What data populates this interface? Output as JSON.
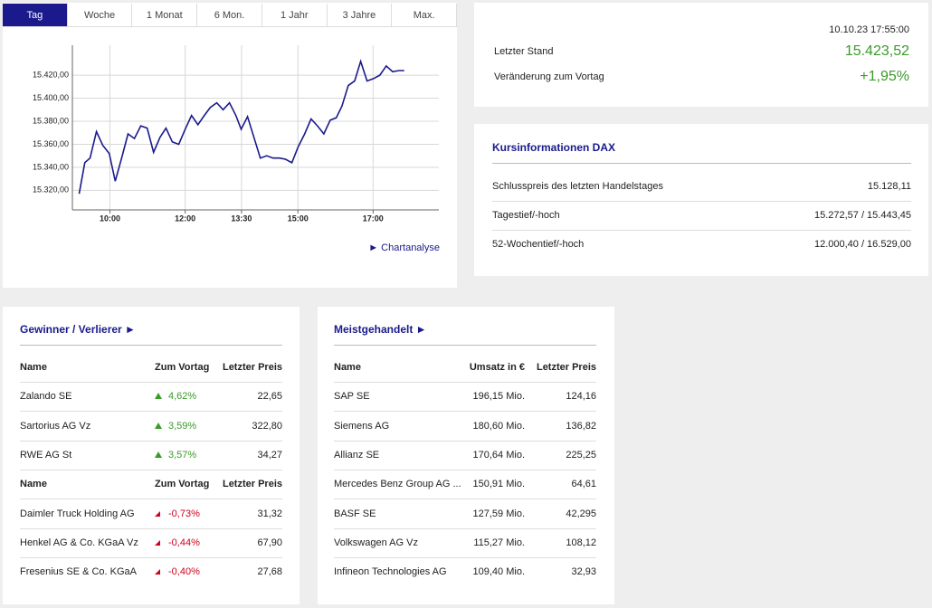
{
  "tabs": {
    "items": [
      "Tag",
      "Woche",
      "1 Monat",
      "6 Mon.",
      "1 Jahr",
      "3 Jahre",
      "Max."
    ],
    "selected": 0
  },
  "chart_data": {
    "type": "line",
    "x": [
      9.18,
      9.33,
      9.47,
      9.64,
      9.81,
      9.98,
      10.14,
      10.31,
      10.48,
      10.65,
      10.82,
      10.99,
      11.16,
      11.33,
      11.49,
      11.66,
      11.83,
      12.0,
      12.17,
      12.34,
      12.51,
      12.67,
      12.84,
      13.01,
      13.18,
      13.35,
      13.49,
      13.66,
      13.83,
      14.0,
      14.17,
      14.34,
      14.51,
      14.67,
      14.84,
      15.01,
      15.18,
      15.35,
      15.52,
      15.69,
      15.86,
      16.02,
      16.17,
      16.34,
      16.51,
      16.67,
      16.84,
      17.01,
      17.18,
      17.35,
      17.52,
      17.69,
      17.83
    ],
    "series": [
      {
        "color": "#1a1a8c",
        "values": [
          15317,
          15344,
          15348,
          15371,
          15359,
          15352,
          15328,
          15348,
          15369,
          15365,
          15376,
          15374,
          15353,
          15366,
          15374,
          15362,
          15360,
          15373,
          15385,
          15377,
          15385,
          15392,
          15396,
          15390,
          15396,
          15385,
          15373,
          15384,
          15366,
          15348,
          15350,
          15348,
          15348,
          15347,
          15344,
          15358,
          15369,
          15382,
          15376,
          15369,
          15381,
          15383,
          15393,
          15411,
          15415,
          15432,
          15415,
          15417,
          15420,
          15428,
          15423,
          15424,
          15424
        ]
      }
    ],
    "xlim": [
      9,
      18.75
    ],
    "xticks": [
      {
        "value": 10,
        "label": "10:00"
      },
      {
        "value": 12,
        "label": "12:00"
      },
      {
        "value": 13.5,
        "label": "13:30"
      },
      {
        "value": 15,
        "label": "15:00"
      },
      {
        "value": 17,
        "label": "17:00"
      }
    ],
    "ylim": [
      15303,
      15446
    ],
    "yticks": [
      {
        "value": 15320,
        "label": "15.320,00"
      },
      {
        "value": 15340,
        "label": "15.340,00"
      },
      {
        "value": 15360,
        "label": "15.360,00"
      },
      {
        "value": 15380,
        "label": "15.380,00"
      },
      {
        "value": 15400,
        "label": "15.400,00"
      },
      {
        "value": 15420,
        "label": "15.420,00"
      }
    ],
    "grid": true
  },
  "chart_link": "► Chartanalyse",
  "quote": {
    "timestamp": "10.10.23 17:55:00",
    "color": "#3a9a2a",
    "rows": [
      [
        "Letzter Stand",
        "15.423,52"
      ],
      [
        "Veränderung zum Vortag",
        "+1,95%"
      ]
    ]
  },
  "kursinfo": {
    "title": "Kursinformationen DAX",
    "rows": [
      [
        "Schlusspreis des letzten Handelstages",
        "15.128,11"
      ],
      [
        "Tagestief/-hoch",
        "15.272,57 / 15.443,45"
      ],
      [
        "52-Wochentief/-hoch",
        "12.000,40 / 16.529,00"
      ]
    ]
  },
  "gainers_losers": {
    "title": "Gewinner / Verlierer ►",
    "tables": [
      {
        "header": [
          "Name",
          "Zum Vortag",
          "Letzter Preis"
        ],
        "color": "#3a9a2a",
        "direction": "up",
        "rows": [
          [
            "Zalando SE",
            "4,62%",
            "22,65"
          ],
          [
            "Sartorius AG Vz",
            "3,59%",
            "322,80"
          ],
          [
            "RWE AG St",
            "3,57%",
            "34,27"
          ]
        ]
      },
      {
        "header": [
          "Name",
          "Zum Vortag",
          "Letzter Preis"
        ],
        "color": "#d0021b",
        "direction": "down",
        "rows": [
          [
            "Daimler Truck Holding AG",
            "-0,73%",
            "31,32"
          ],
          [
            "Henkel AG & Co. KGaA Vz",
            "-0,44%",
            "67,90"
          ],
          [
            "Fresenius SE & Co. KGaA",
            "-0,40%",
            "27,68"
          ]
        ]
      }
    ]
  },
  "most_traded": {
    "title": "Meistgehandelt ►",
    "header": [
      "Name",
      "Umsatz in €",
      "Letzter Preis"
    ],
    "rows": [
      [
        "SAP SE",
        "196,15 Mio.",
        "124,16"
      ],
      [
        "Siemens AG",
        "180,60 Mio.",
        "136,82"
      ],
      [
        "Allianz SE",
        "170,64 Mio.",
        "225,25"
      ],
      [
        "Mercedes Benz Group AG ...",
        "150,91 Mio.",
        "64,61"
      ],
      [
        "BASF SE",
        "127,59 Mio.",
        "42,295"
      ],
      [
        "Volkswagen AG Vz",
        "115,27 Mio.",
        "108,12"
      ],
      [
        "Infineon Technologies AG",
        "109,40 Mio.",
        "32,93"
      ]
    ]
  }
}
